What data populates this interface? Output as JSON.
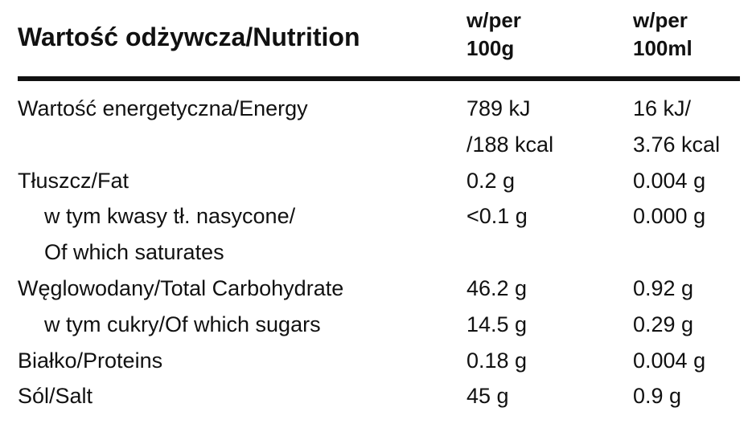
{
  "header": {
    "title": "Wartość odżywcza/Nutrition",
    "col1": [
      "w/per",
      "100g"
    ],
    "col2": [
      "w/per",
      "100ml"
    ]
  },
  "table": {
    "rows": [
      {
        "label": [
          "Wartość energetyczna/Energy"
        ],
        "per100g": [
          "789 kJ",
          "/188 kcal"
        ],
        "per100ml": [
          "16 kJ/",
          "3.76 kcal"
        ]
      },
      {
        "label": [
          "Tłuszcz/Fat"
        ],
        "per100g": [
          "0.2 g"
        ],
        "per100ml": [
          "0.004 g"
        ]
      },
      {
        "label": [
          "w tym kwasy tł. nasycone/",
          "Of which saturates"
        ],
        "per100g": [
          "<0.1 g"
        ],
        "per100ml": [
          "0.000 g"
        ],
        "indent": true
      },
      {
        "label": [
          "Węglowodany/Total Carbohydrate"
        ],
        "per100g": [
          "46.2 g"
        ],
        "per100ml": [
          "0.92 g"
        ]
      },
      {
        "label": [
          "w tym cukry/Of which sugars"
        ],
        "per100g": [
          "14.5 g"
        ],
        "per100ml": [
          "0.29 g"
        ],
        "indent": true
      },
      {
        "label": [
          "Białko/Proteins"
        ],
        "per100g": [
          "0.18 g"
        ],
        "per100ml": [
          "0.004 g"
        ]
      },
      {
        "label": [
          "Sól/Salt"
        ],
        "per100g": [
          "45 g"
        ],
        "per100ml": [
          "0.9 g"
        ]
      }
    ]
  }
}
